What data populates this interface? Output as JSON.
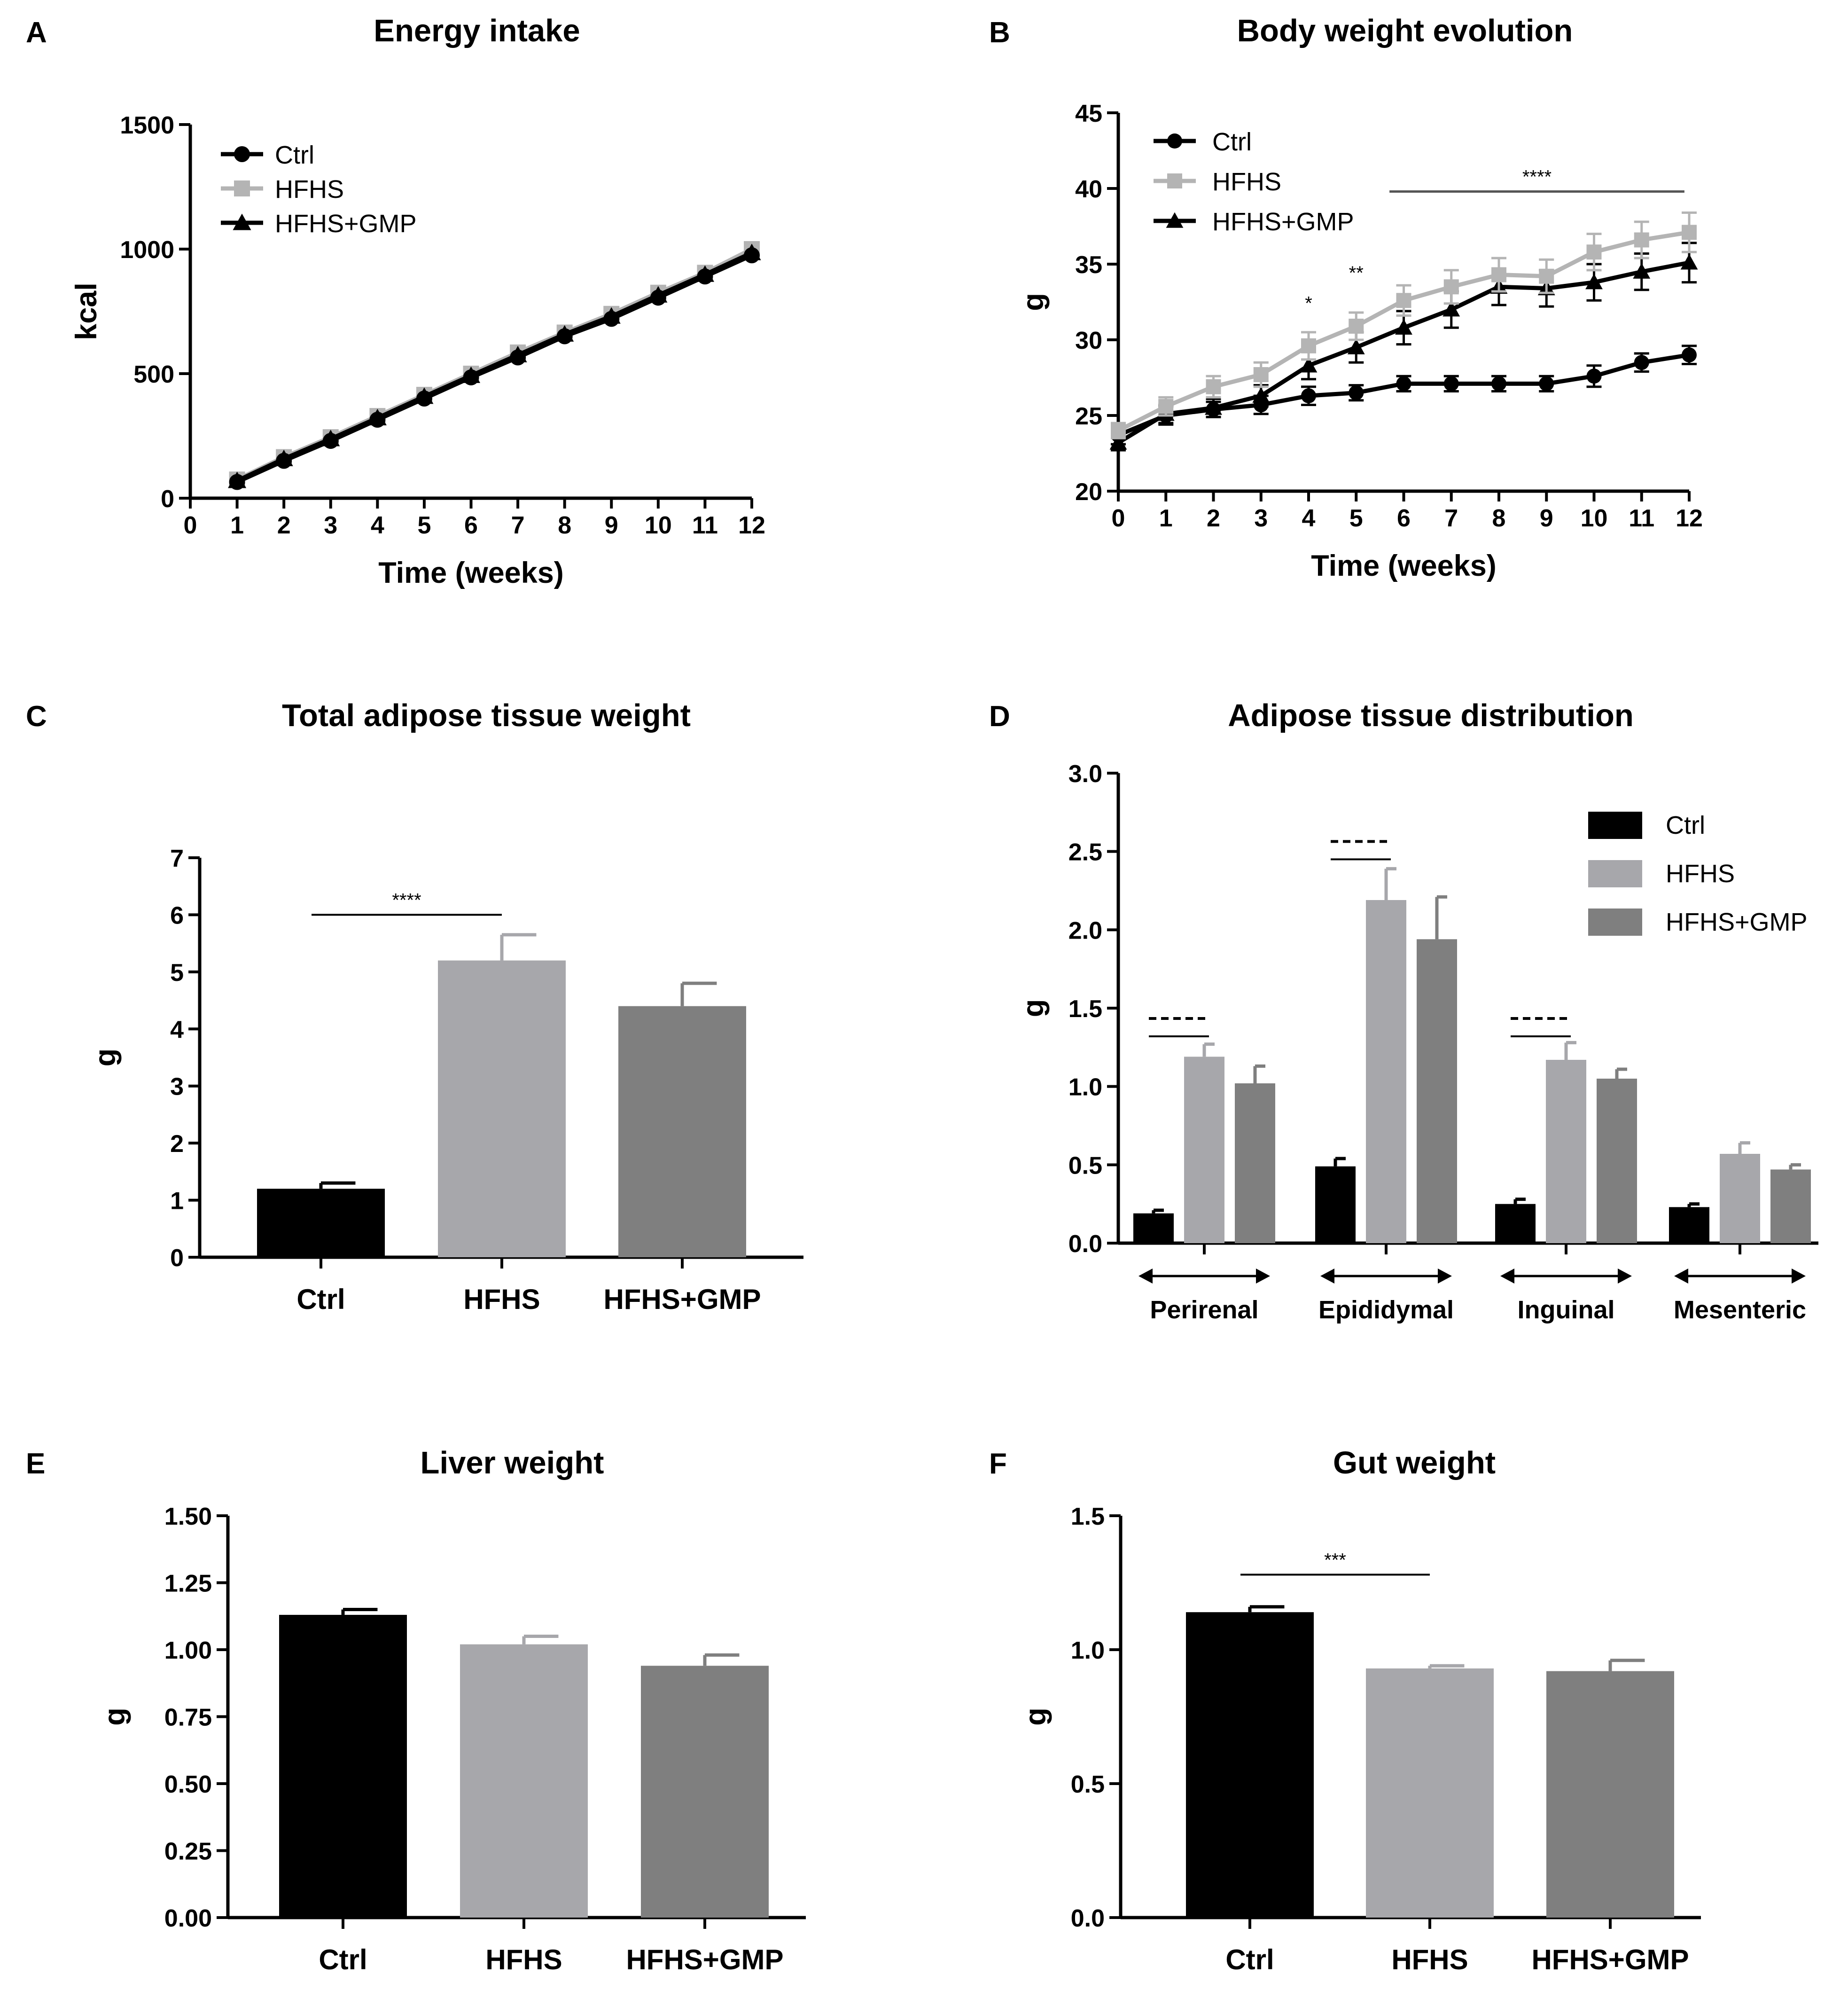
{
  "colors": {
    "ctrl": "#000000",
    "hfhs": "#a7a7ab",
    "hfhs_gmp": "#7f7f7f",
    "hfhs_line": "#b4b4b4",
    "sig_line": "#555555"
  },
  "chart_data": [
    {
      "panel": "A",
      "type": "line",
      "title": "Energy intake",
      "xlabel": "Time (weeks)",
      "ylabel": "kcal",
      "xlim": [
        0,
        12
      ],
      "ylim": [
        0,
        1500
      ],
      "x": [
        1,
        2,
        3,
        4,
        5,
        6,
        7,
        8,
        9,
        10,
        11,
        12
      ],
      "xticks": [
        "0",
        "1",
        "2",
        "3",
        "4",
        "5",
        "6",
        "7",
        "8",
        "9",
        "10",
        "11",
        "12"
      ],
      "yticks": [
        "0",
        "500",
        "1000",
        "1500"
      ],
      "legend": [
        "Ctrl",
        "HFHS",
        "HFHS+GMP"
      ],
      "legend_position": "top-left",
      "series": [
        {
          "name": "Ctrl",
          "values": [
            65,
            150,
            230,
            315,
            400,
            485,
            565,
            650,
            720,
            805,
            890,
            975
          ]
        },
        {
          "name": "HFHS",
          "values": [
            75,
            165,
            245,
            330,
            415,
            500,
            585,
            665,
            740,
            825,
            905,
            1000
          ]
        },
        {
          "name": "HFHS+GMP",
          "values": [
            70,
            158,
            238,
            322,
            408,
            492,
            575,
            658,
            730,
            815,
            898,
            985
          ]
        }
      ]
    },
    {
      "panel": "B",
      "type": "line",
      "title": "Body weight evolution",
      "xlabel": "Time (weeks)",
      "ylabel": "g",
      "xlim": [
        0,
        12
      ],
      "ylim": [
        20,
        45
      ],
      "x": [
        0,
        1,
        2,
        3,
        4,
        5,
        6,
        7,
        8,
        9,
        10,
        11,
        12
      ],
      "xticks": [
        "0",
        "1",
        "2",
        "3",
        "4",
        "5",
        "6",
        "7",
        "8",
        "9",
        "10",
        "11",
        "12"
      ],
      "yticks": [
        "20",
        "25",
        "30",
        "35",
        "40",
        "45"
      ],
      "legend": [
        "Ctrl",
        "HFHS",
        "HFHS+GMP"
      ],
      "legend_position": "top-left",
      "series": [
        {
          "name": "Ctrl",
          "values": [
            23.7,
            25.0,
            25.4,
            25.7,
            26.3,
            26.5,
            27.1,
            27.1,
            27.1,
            27.1,
            27.6,
            28.5,
            29.0
          ],
          "errors": [
            0.6,
            0.6,
            0.5,
            0.6,
            0.6,
            0.5,
            0.5,
            0.5,
            0.5,
            0.5,
            0.7,
            0.6,
            0.6
          ]
        },
        {
          "name": "HFHS",
          "values": [
            24.0,
            25.6,
            26.9,
            27.7,
            29.6,
            30.9,
            32.6,
            33.5,
            34.3,
            34.2,
            35.8,
            36.6,
            37.1
          ],
          "errors": [
            0.5,
            0.6,
            0.7,
            0.8,
            0.9,
            0.9,
            1.0,
            1.1,
            1.1,
            1.1,
            1.2,
            1.2,
            1.3
          ]
        },
        {
          "name": "HFHS+GMP",
          "values": [
            23.2,
            25.1,
            25.5,
            26.3,
            28.3,
            29.5,
            30.8,
            32.0,
            33.5,
            33.4,
            33.8,
            34.5,
            35.1
          ],
          "errors": [
            0.5,
            0.6,
            0.6,
            0.7,
            0.9,
            1.0,
            1.1,
            1.2,
            1.2,
            1.2,
            1.2,
            1.2,
            1.3
          ]
        }
      ],
      "annotations": [
        {
          "text": "*",
          "x": 4,
          "y": 32
        },
        {
          "text": "**",
          "x": 5,
          "y": 34
        },
        {
          "text": "****",
          "x_from": 5.7,
          "x_to": 11.9,
          "y": 39.8
        }
      ]
    },
    {
      "panel": "C",
      "type": "bar",
      "title": "Total adipose tissue weight",
      "xlabel": "",
      "ylabel": "g",
      "ylim": [
        0,
        7
      ],
      "yticks": [
        "0",
        "1",
        "2",
        "3",
        "4",
        "5",
        "6",
        "7"
      ],
      "categories": [
        "Ctrl",
        "HFHS",
        "HFHS+GMP"
      ],
      "values": [
        1.2,
        5.2,
        4.4
      ],
      "errors": [
        0.1,
        0.45,
        0.4
      ],
      "annotations": [
        {
          "text": "****",
          "from": "Ctrl",
          "to": "HFHS",
          "y": 6.0
        }
      ]
    },
    {
      "panel": "D",
      "type": "bar",
      "title": "Adipose tissue distribution",
      "xlabel": "",
      "ylabel": "g",
      "ylim": [
        0,
        3.0
      ],
      "yticks": [
        "0.0",
        "0.5",
        "1.0",
        "1.5",
        "2.0",
        "2.5",
        "3.0"
      ],
      "categories": [
        "Perirenal",
        "Epididymal",
        "Inguinal",
        "Mesenteric"
      ],
      "legend": [
        "Ctrl",
        "HFHS",
        "HFHS+GMP"
      ],
      "legend_position": "top-right",
      "series": [
        {
          "name": "Ctrl",
          "values": [
            0.19,
            0.49,
            0.25,
            0.23
          ],
          "errors": [
            0.02,
            0.05,
            0.03,
            0.02
          ]
        },
        {
          "name": "HFHS",
          "values": [
            1.19,
            2.19,
            1.17,
            0.57
          ],
          "errors": [
            0.08,
            0.2,
            0.11,
            0.07
          ]
        },
        {
          "name": "HFHS+GMP",
          "values": [
            1.02,
            1.94,
            1.05,
            0.47
          ],
          "errors": [
            0.11,
            0.27,
            0.06,
            0.03
          ]
        }
      ],
      "annotations": [
        {
          "text": "----",
          "group": "Perirenal",
          "y": 1.32
        },
        {
          "text": "----",
          "group": "Epididymal",
          "y": 2.45
        },
        {
          "text": "----",
          "group": "Inguinal",
          "y": 1.32
        }
      ]
    },
    {
      "panel": "E",
      "type": "bar",
      "title": "Liver weight",
      "xlabel": "",
      "ylabel": "g",
      "ylim": [
        0,
        1.5
      ],
      "yticks": [
        "0.00",
        "0.25",
        "0.50",
        "0.75",
        "1.00",
        "1.25",
        "1.50"
      ],
      "categories": [
        "Ctrl",
        "HFHS",
        "HFHS+GMP"
      ],
      "values": [
        1.13,
        1.02,
        0.94
      ],
      "errors": [
        0.02,
        0.03,
        0.04
      ]
    },
    {
      "panel": "F",
      "type": "bar",
      "title": "Gut weight",
      "xlabel": "",
      "ylabel": "g",
      "ylim": [
        0,
        1.5
      ],
      "yticks": [
        "0.0",
        "0.5",
        "1.0",
        "1.5"
      ],
      "categories": [
        "Ctrl",
        "HFHS",
        "HFHS+GMP"
      ],
      "values": [
        1.14,
        0.93,
        0.92
      ],
      "errors": [
        0.02,
        0.01,
        0.04
      ],
      "annotations": [
        {
          "text": "***",
          "from": "Ctrl",
          "to": "HFHS",
          "y": 1.28
        }
      ]
    }
  ]
}
